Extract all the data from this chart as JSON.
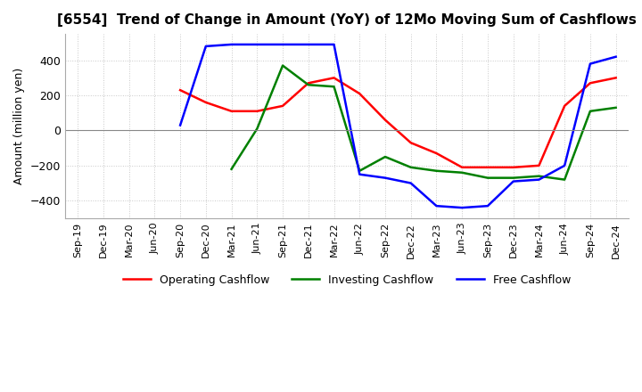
{
  "title": "[6554]  Trend of Change in Amount (YoY) of 12Mo Moving Sum of Cashflows",
  "ylabel": "Amount (million yen)",
  "x_labels": [
    "Sep-19",
    "Dec-19",
    "Mar-20",
    "Jun-20",
    "Sep-20",
    "Dec-20",
    "Mar-21",
    "Jun-21",
    "Sep-21",
    "Dec-21",
    "Mar-22",
    "Jun-22",
    "Sep-22",
    "Dec-22",
    "Mar-23",
    "Jun-23",
    "Sep-23",
    "Dec-23",
    "Mar-24",
    "Jun-24",
    "Sep-24",
    "Dec-24"
  ],
  "operating": [
    null,
    null,
    null,
    null,
    230,
    160,
    110,
    110,
    140,
    270,
    300,
    210,
    60,
    -70,
    -130,
    -210,
    -210,
    -210,
    -200,
    140,
    270,
    300
  ],
  "investing": [
    null,
    null,
    null,
    null,
    null,
    null,
    -220,
    10,
    370,
    260,
    250,
    -230,
    -150,
    -210,
    -230,
    -240,
    -270,
    -270,
    -260,
    -280,
    110,
    130
  ],
  "free": [
    null,
    null,
    null,
    null,
    30,
    480,
    490,
    490,
    490,
    490,
    490,
    -250,
    -270,
    -300,
    -430,
    -440,
    -430,
    -290,
    -280,
    -200,
    380,
    420
  ],
  "ylim": [
    -500,
    550
  ],
  "yticks": [
    -400,
    -200,
    0,
    200,
    400
  ],
  "operating_color": "#ff0000",
  "investing_color": "#008000",
  "free_color": "#0000ff",
  "grid_color": "#c8c8c8",
  "grid_style": "dotted",
  "background_color": "#ffffff"
}
